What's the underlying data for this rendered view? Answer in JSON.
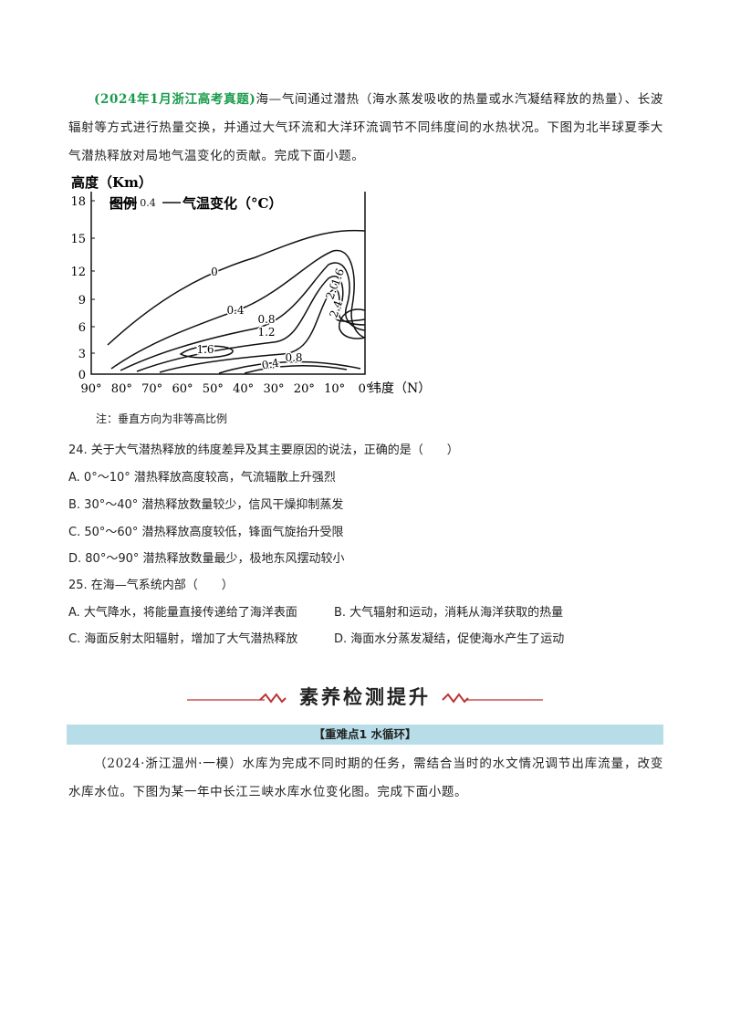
{
  "intro": {
    "source": "(2024年1月浙江高考真题)",
    "text": "海—气间通过潜热（海水蒸发吸收的热量或水汽凝结释放的热量）、长波辐射等方式进行热量交换，并通过大气环流和大洋环流调节不同纬度间的水热状况。下图为北半球夏季大气潜热释放对局地气温变化的贡献。完成下面小题。"
  },
  "figure": {
    "y_label": "高度（Km）",
    "yticks": [
      "18",
      "15",
      "12",
      "9",
      "6",
      "3",
      "0"
    ],
    "xticks": [
      "90°",
      "80°",
      "70°",
      "60°",
      "50°",
      "40°",
      "30°",
      "20°",
      "10°",
      "0°"
    ],
    "x_label": "纬度（N）",
    "legend": {
      "title": "图例",
      "sample": "0.4",
      "label": "气温变化（°C）"
    },
    "contour_labels": [
      "0",
      "0.4",
      "0.8",
      "1.2",
      "1.6",
      "2.4",
      "2.0",
      "1.6",
      "0.8",
      "0.4"
    ],
    "note": "注：垂直方向为非等高比例"
  },
  "questions": [
    {
      "stem": "24. 关于大气潜热释放的纬度差异及其主要原因的说法，正确的是（　　）",
      "options": [
        "A. 0°～10° 潜热释放高度较高，气流辐散上升强烈",
        "B. 30°～40° 潜热释放数量较少，信风干燥抑制蒸发",
        "C. 50°～60° 潜热释放高度较低，锋面气旋抬升受限",
        "D. 80°～90° 潜热释放数量最少，极地东风摆动较小"
      ]
    },
    {
      "stem": "25. 在海—气系统内部（　　）",
      "options": [
        "A. 大气降水，将能量直接传递给了海洋表面",
        "B. 大气辐射和运动，消耗从海洋获取的热量",
        "C. 海面反射太阳辐射，增加了大气潜热释放",
        "D. 海面水分蒸发凝结，促使海水产生了运动"
      ]
    }
  ],
  "section": {
    "title": "素养检测提升",
    "banner": "【重难点1 水循环】",
    "text": "（2024·浙江温州·一模）水库为完成不同时期的任务，需结合当时的水文情况调节出库流量，改变水库水位。下图为某一年中长江三峡水库水位变化图。完成下面小题。"
  }
}
